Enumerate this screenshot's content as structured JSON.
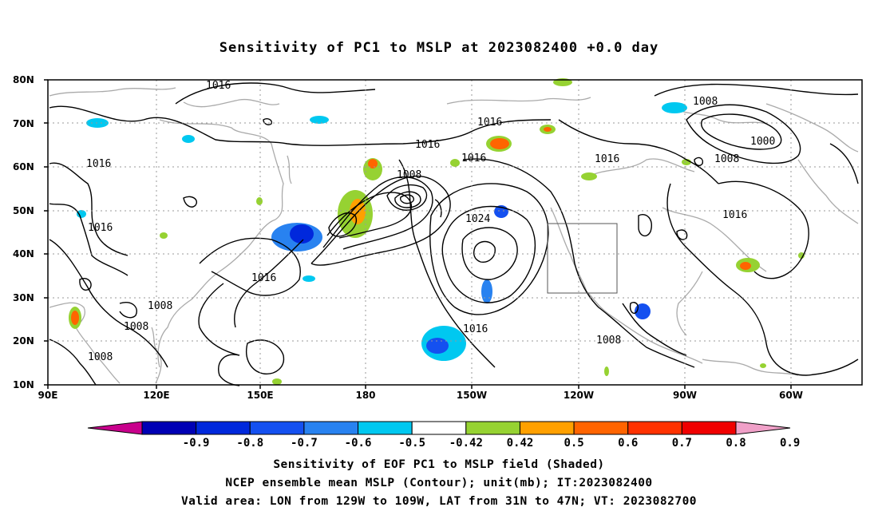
{
  "title": "Sensitivity of PC1 to MSLP at 2023082400 +0.0 day",
  "lat_labels": [
    "80N",
    "70N",
    "60N",
    "50N",
    "40N",
    "30N",
    "20N",
    "10N"
  ],
  "lon_labels": [
    "90E",
    "120E",
    "150E",
    "180",
    "150W",
    "120W",
    "90W",
    "60W"
  ],
  "contour_labels": [
    "1016",
    "1016",
    "1016",
    "1016",
    "1016",
    "1016",
    "1016",
    "1016",
    "1016",
    "1016",
    "1008",
    "1008",
    "1008",
    "1008",
    "1008",
    "1008",
    "1008",
    "1024",
    "1000"
  ],
  "colorbar": {
    "labels": [
      "-0.9",
      "-0.8",
      "-0.7",
      "-0.6",
      "-0.5",
      "-0.42",
      "0.42",
      "0.5",
      "0.6",
      "0.7",
      "0.8",
      "0.9"
    ],
    "colors": [
      "#c8008c",
      "#0000b4",
      "#0028dc",
      "#1450f0",
      "#2882f0",
      "#00c8f0",
      "#ffffff",
      "#96d232",
      "#ffa000",
      "#ff6400",
      "#ff3200",
      "#f00000",
      "#f0a0c8"
    ]
  },
  "footer": {
    "line1": "Sensitivity of EOF PC1 to MSLP field (Shaded)",
    "line2": "NCEP ensemble mean MSLP (Contour); unit(mb); IT:2023082400",
    "line3": "Valid area: LON from 129W to 109W, LAT from 31N to 47N; VT: 2023082700"
  },
  "colors": {
    "coast": "#aaaaaa",
    "grid": "#999999",
    "contour": "#000000"
  }
}
